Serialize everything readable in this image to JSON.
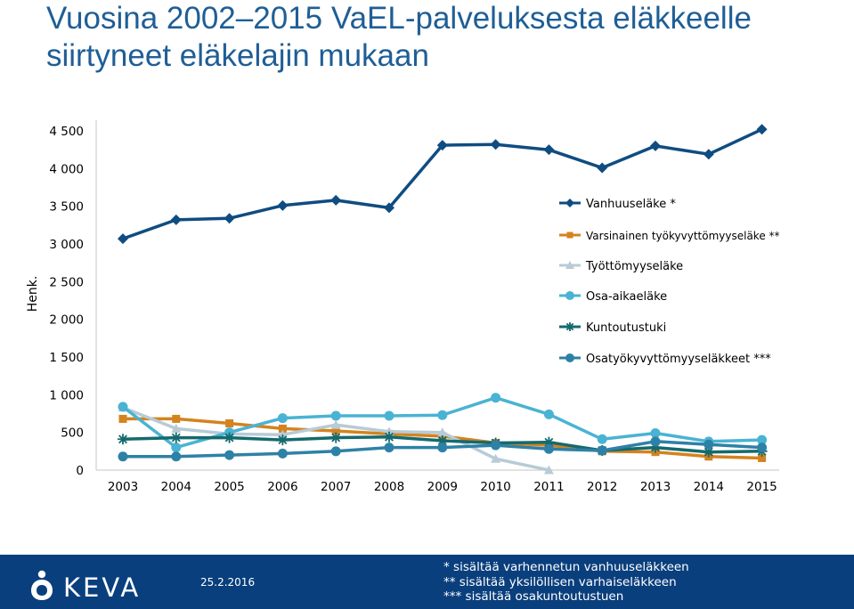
{
  "slide": {
    "title": "Vuosina 2002–2015 VaEL-palveluksesta eläkkeelle siirtyneet eläkelajin mukaan",
    "date": "25.2.2016",
    "footnotes": [
      "* sisältää varhennetun vanhuuseläkkeen",
      "** sisältää yksilöllisen varhaiseläkkeen",
      "*** sisältää osakuntoutustuen"
    ],
    "logo_text": "KEVA"
  },
  "chart_data": {
    "type": "line",
    "title": "",
    "xlabel": "",
    "ylabel": "Henk.",
    "categories": [
      "2003",
      "2004",
      "2005",
      "2006",
      "2007",
      "2008",
      "2009",
      "2010",
      "2011",
      "2012",
      "2013",
      "2014",
      "2015"
    ],
    "ylim": [
      0,
      4500
    ],
    "y_ticks": [
      0,
      500,
      1000,
      1500,
      2000,
      2500,
      3000,
      3500,
      4000,
      4500
    ],
    "y_tick_labels": [
      "0",
      "500",
      "1 000",
      "1 500",
      "2 000",
      "2 500",
      "3 000",
      "3 500",
      "4 000",
      "4 500"
    ],
    "grid": false,
    "legend_position": "right",
    "series": [
      {
        "name": "Vanhuuseläke *",
        "color": "#0f4c81",
        "marker": "diamond",
        "values": [
          3070,
          3320,
          3340,
          3510,
          3580,
          3480,
          4310,
          4320,
          4250,
          4010,
          4300,
          4190,
          4520
        ]
      },
      {
        "name": "Varsinainen työkyvyttömyyseläke **",
        "color": "#d4831e",
        "marker": "square",
        "values": [
          680,
          680,
          620,
          550,
          520,
          480,
          450,
          360,
          330,
          250,
          240,
          180,
          160
        ]
      },
      {
        "name": "Työttömyyseläke",
        "color": "#b8cbd6",
        "marker": "triangle",
        "values": [
          830,
          550,
          480,
          470,
          600,
          510,
          500,
          150,
          0,
          null,
          null,
          null,
          null
        ]
      },
      {
        "name": "Osa-aikaeläke",
        "color": "#4ab3d3",
        "marker": "circle",
        "values": [
          840,
          300,
          500,
          690,
          720,
          720,
          730,
          960,
          740,
          410,
          490,
          380,
          400
        ]
      },
      {
        "name": "Kuntoutustuki",
        "color": "#146a6e",
        "marker": "star",
        "values": [
          410,
          430,
          430,
          400,
          430,
          440,
          390,
          360,
          370,
          260,
          300,
          240,
          250
        ]
      },
      {
        "name": "Osatyökyvyttömyyseläkkeet ***",
        "color": "#2e81a6",
        "marker": "circle",
        "values": [
          180,
          180,
          200,
          220,
          250,
          300,
          300,
          330,
          280,
          260,
          380,
          340,
          300
        ]
      }
    ]
  }
}
